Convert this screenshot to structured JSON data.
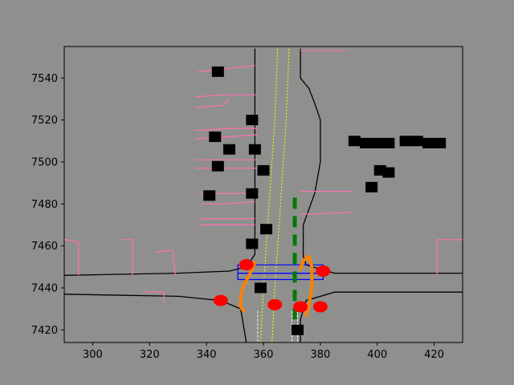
{
  "chart_data": {
    "type": "scatter",
    "title": "",
    "xlabel": "",
    "ylabel": "",
    "xlim": [
      290,
      430
    ],
    "ylim": [
      7414,
      7555
    ],
    "grid": false,
    "x_ticks": [
      300,
      320,
      340,
      360,
      380,
      400,
      420
    ],
    "y_ticks": [
      7420,
      7440,
      7460,
      7480,
      7500,
      7520,
      7540
    ],
    "colors": {
      "background": "#8f908d",
      "road_edge": "#000000",
      "lane_marking": "#ffff00",
      "dashed_marking": "#ffffff",
      "crosswalk": "#0000ff",
      "parking": "#ff6fb0",
      "vehicle": "#000000",
      "agent": "#ff0000",
      "trajectory": "#ff8000",
      "route": "#007a00"
    },
    "series": [
      {
        "kind": "road_edge",
        "lines": [
          [
            [
              290,
              7446
            ],
            [
              330,
              7447
            ],
            [
              348,
              7448
            ],
            [
              354,
              7450
            ],
            [
              357,
              7456
            ],
            [
              357,
              7554
            ]
          ],
          [
            [
              290,
              7437
            ],
            [
              330,
              7436
            ],
            [
              345,
              7434
            ],
            [
              352,
              7430
            ],
            [
              354,
              7414
            ]
          ],
          [
            [
              373,
              7554
            ],
            [
              373,
              7540
            ],
            [
              376,
              7535
            ],
            [
              378,
              7528
            ],
            [
              380,
              7520
            ],
            [
              380,
              7500
            ],
            [
              378,
              7485
            ],
            [
              374,
              7470
            ],
            [
              374,
              7455
            ],
            [
              375,
              7451
            ],
            [
              385,
              7447
            ],
            [
              430,
              7447
            ]
          ],
          [
            [
              430,
              7438
            ],
            [
              385,
              7438
            ],
            [
              375,
              7434
            ],
            [
              373,
              7425
            ],
            [
              373,
              7414
            ]
          ]
        ]
      },
      {
        "kind": "lane_marking",
        "lines": [
          [
            [
              365,
              7554
            ],
            [
              364,
              7520
            ],
            [
              362,
              7480
            ],
            [
              360,
              7440
            ],
            [
              359,
              7414
            ]
          ],
          [
            [
              369,
              7554
            ],
            [
              368,
              7520
            ],
            [
              366,
              7480
            ],
            [
              364,
              7440
            ],
            [
              363,
              7414
            ]
          ]
        ]
      },
      {
        "kind": "dashed_marking",
        "lines": [
          [
            [
              358,
              7429
            ],
            [
              358,
              7414
            ]
          ],
          [
            [
              370,
              7429
            ],
            [
              370,
              7414
            ]
          ],
          [
            [
              372,
              7429
            ],
            [
              372,
              7414
            ]
          ]
        ]
      },
      {
        "kind": "crosswalk",
        "polygons": [
          [
            [
              351,
              7451
            ],
            [
              381,
              7451
            ],
            [
              381,
              7447
            ],
            [
              351,
              7447
            ]
          ],
          [
            [
              351,
              7447
            ],
            [
              381,
              7447
            ],
            [
              381,
              7444
            ],
            [
              351,
              7444
            ]
          ]
        ]
      },
      {
        "kind": "parking",
        "lines": [
          [
            [
              357,
              7546
            ],
            [
              344,
              7544
            ],
            [
              337,
              7543
            ]
          ],
          [
            [
              358,
              7532
            ],
            [
              346,
              7532
            ],
            [
              336,
              7531
            ]
          ],
          [
            [
              348,
              7530
            ],
            [
              346,
              7527
            ],
            [
              336,
              7526
            ]
          ],
          [
            [
              358,
              7516
            ],
            [
              348,
              7516
            ],
            [
              336,
              7515
            ]
          ],
          [
            [
              358,
              7513
            ],
            [
              348,
              7512
            ],
            [
              336,
              7511
            ]
          ],
          [
            [
              358,
              7501
            ],
            [
              347,
              7501
            ],
            [
              336,
              7501
            ]
          ],
          [
            [
              358,
              7497
            ],
            [
              348,
              7497
            ],
            [
              336,
              7497
            ]
          ],
          [
            [
              357,
              7485
            ],
            [
              348,
              7485
            ],
            [
              338,
              7485
            ]
          ],
          [
            [
              357,
              7481
            ],
            [
              345,
              7480
            ],
            [
              338,
              7480
            ]
          ],
          [
            [
              357,
              7473
            ],
            [
              348,
              7473
            ],
            [
              338,
              7473
            ]
          ],
          [
            [
              357,
              7470
            ],
            [
              345,
              7470
            ],
            [
              338,
              7470
            ]
          ],
          [
            [
              373,
              7553
            ],
            [
              389,
              7553
            ]
          ],
          [
            [
              373,
              7486
            ],
            [
              391,
              7486
            ]
          ],
          [
            [
              373,
              7475
            ],
            [
              391,
              7476
            ]
          ],
          [
            [
              290,
              7463
            ],
            [
              295,
              7462
            ],
            [
              295,
              7446
            ]
          ],
          [
            [
              310,
              7463
            ],
            [
              314,
              7463
            ],
            [
              314,
              7446
            ]
          ],
          [
            [
              322,
              7457
            ],
            [
              328,
              7458
            ],
            [
              329,
              7446
            ]
          ],
          [
            [
              318,
              7438
            ],
            [
              325,
              7438
            ],
            [
              325,
              7433
            ]
          ],
          [
            [
              430,
              7463
            ],
            [
              421,
              7463
            ],
            [
              421,
              7446
            ]
          ]
        ]
      },
      {
        "kind": "vehicle",
        "points": [
          {
            "x": 344,
            "y": 7543
          },
          {
            "x": 356,
            "y": 7520
          },
          {
            "x": 343,
            "y": 7512
          },
          {
            "x": 348,
            "y": 7506
          },
          {
            "x": 357,
            "y": 7506
          },
          {
            "x": 344,
            "y": 7498
          },
          {
            "x": 360,
            "y": 7496
          },
          {
            "x": 341,
            "y": 7484
          },
          {
            "x": 356,
            "y": 7485
          },
          {
            "x": 361,
            "y": 7468
          },
          {
            "x": 356,
            "y": 7461
          },
          {
            "x": 359,
            "y": 7440
          },
          {
            "x": 372,
            "y": 7420
          },
          {
            "x": 392,
            "y": 7510
          },
          {
            "x": 396,
            "y": 7509
          },
          {
            "x": 400,
            "y": 7509
          },
          {
            "x": 404,
            "y": 7509
          },
          {
            "x": 410,
            "y": 7510
          },
          {
            "x": 414,
            "y": 7510
          },
          {
            "x": 418,
            "y": 7509
          },
          {
            "x": 422,
            "y": 7509
          },
          {
            "x": 401,
            "y": 7496
          },
          {
            "x": 404,
            "y": 7495
          },
          {
            "x": 398,
            "y": 7488
          }
        ]
      },
      {
        "kind": "agent",
        "points": [
          {
            "x": 354,
            "y": 7451
          },
          {
            "x": 381,
            "y": 7448
          },
          {
            "x": 345,
            "y": 7434
          },
          {
            "x": 364,
            "y": 7432
          },
          {
            "x": 373,
            "y": 7431
          },
          {
            "x": 380,
            "y": 7431
          }
        ]
      },
      {
        "kind": "trajectory",
        "lines": [
          [
            [
              357,
              7452
            ],
            [
              355,
              7446
            ],
            [
              353,
              7441
            ],
            [
              352,
              7436
            ],
            [
              352,
              7431
            ],
            [
              353,
              7429
            ]
          ],
          [
            [
              373,
              7449
            ],
            [
              374,
              7453
            ],
            [
              376,
              7455
            ],
            [
              377,
              7450
            ],
            [
              377,
              7440
            ],
            [
              376,
              7432
            ],
            [
              375,
              7427
            ]
          ]
        ]
      },
      {
        "kind": "route",
        "lines": [
          [
            [
              371,
              7483
            ],
            [
              371,
              7445
            ],
            [
              371,
              7425
            ]
          ]
        ]
      }
    ]
  }
}
